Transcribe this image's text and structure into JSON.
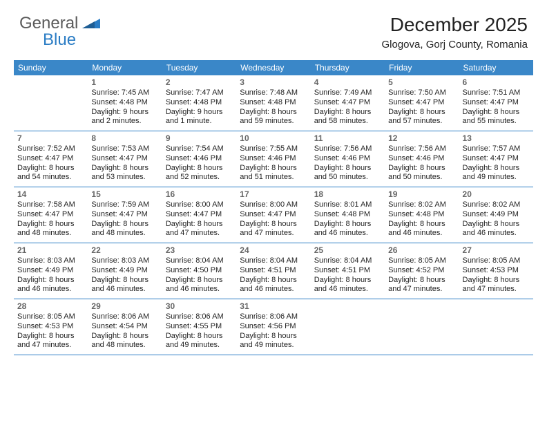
{
  "colors": {
    "header_bg": "#3a87c8",
    "header_text": "#ffffff",
    "divider": "#2a7cc4",
    "body_text": "#222222",
    "daynum_text": "#666666",
    "logo_gray": "#5a5a5a",
    "logo_blue": "#2a7cc4",
    "background": "#ffffff"
  },
  "logo": {
    "part1": "General",
    "part2": "Blue"
  },
  "title": "December 2025",
  "location": "Glogova, Gorj County, Romania",
  "weekdays": [
    "Sunday",
    "Monday",
    "Tuesday",
    "Wednesday",
    "Thursday",
    "Friday",
    "Saturday"
  ],
  "weeks": [
    [
      {
        "num": "",
        "sunrise": "",
        "sunset": "",
        "daylight": ""
      },
      {
        "num": "1",
        "sunrise": "Sunrise: 7:45 AM",
        "sunset": "Sunset: 4:48 PM",
        "daylight": "Daylight: 9 hours and 2 minutes."
      },
      {
        "num": "2",
        "sunrise": "Sunrise: 7:47 AM",
        "sunset": "Sunset: 4:48 PM",
        "daylight": "Daylight: 9 hours and 1 minute."
      },
      {
        "num": "3",
        "sunrise": "Sunrise: 7:48 AM",
        "sunset": "Sunset: 4:48 PM",
        "daylight": "Daylight: 8 hours and 59 minutes."
      },
      {
        "num": "4",
        "sunrise": "Sunrise: 7:49 AM",
        "sunset": "Sunset: 4:47 PM",
        "daylight": "Daylight: 8 hours and 58 minutes."
      },
      {
        "num": "5",
        "sunrise": "Sunrise: 7:50 AM",
        "sunset": "Sunset: 4:47 PM",
        "daylight": "Daylight: 8 hours and 57 minutes."
      },
      {
        "num": "6",
        "sunrise": "Sunrise: 7:51 AM",
        "sunset": "Sunset: 4:47 PM",
        "daylight": "Daylight: 8 hours and 55 minutes."
      }
    ],
    [
      {
        "num": "7",
        "sunrise": "Sunrise: 7:52 AM",
        "sunset": "Sunset: 4:47 PM",
        "daylight": "Daylight: 8 hours and 54 minutes."
      },
      {
        "num": "8",
        "sunrise": "Sunrise: 7:53 AM",
        "sunset": "Sunset: 4:47 PM",
        "daylight": "Daylight: 8 hours and 53 minutes."
      },
      {
        "num": "9",
        "sunrise": "Sunrise: 7:54 AM",
        "sunset": "Sunset: 4:46 PM",
        "daylight": "Daylight: 8 hours and 52 minutes."
      },
      {
        "num": "10",
        "sunrise": "Sunrise: 7:55 AM",
        "sunset": "Sunset: 4:46 PM",
        "daylight": "Daylight: 8 hours and 51 minutes."
      },
      {
        "num": "11",
        "sunrise": "Sunrise: 7:56 AM",
        "sunset": "Sunset: 4:46 PM",
        "daylight": "Daylight: 8 hours and 50 minutes."
      },
      {
        "num": "12",
        "sunrise": "Sunrise: 7:56 AM",
        "sunset": "Sunset: 4:46 PM",
        "daylight": "Daylight: 8 hours and 50 minutes."
      },
      {
        "num": "13",
        "sunrise": "Sunrise: 7:57 AM",
        "sunset": "Sunset: 4:47 PM",
        "daylight": "Daylight: 8 hours and 49 minutes."
      }
    ],
    [
      {
        "num": "14",
        "sunrise": "Sunrise: 7:58 AM",
        "sunset": "Sunset: 4:47 PM",
        "daylight": "Daylight: 8 hours and 48 minutes."
      },
      {
        "num": "15",
        "sunrise": "Sunrise: 7:59 AM",
        "sunset": "Sunset: 4:47 PM",
        "daylight": "Daylight: 8 hours and 48 minutes."
      },
      {
        "num": "16",
        "sunrise": "Sunrise: 8:00 AM",
        "sunset": "Sunset: 4:47 PM",
        "daylight": "Daylight: 8 hours and 47 minutes."
      },
      {
        "num": "17",
        "sunrise": "Sunrise: 8:00 AM",
        "sunset": "Sunset: 4:47 PM",
        "daylight": "Daylight: 8 hours and 47 minutes."
      },
      {
        "num": "18",
        "sunrise": "Sunrise: 8:01 AM",
        "sunset": "Sunset: 4:48 PM",
        "daylight": "Daylight: 8 hours and 46 minutes."
      },
      {
        "num": "19",
        "sunrise": "Sunrise: 8:02 AM",
        "sunset": "Sunset: 4:48 PM",
        "daylight": "Daylight: 8 hours and 46 minutes."
      },
      {
        "num": "20",
        "sunrise": "Sunrise: 8:02 AM",
        "sunset": "Sunset: 4:49 PM",
        "daylight": "Daylight: 8 hours and 46 minutes."
      }
    ],
    [
      {
        "num": "21",
        "sunrise": "Sunrise: 8:03 AM",
        "sunset": "Sunset: 4:49 PM",
        "daylight": "Daylight: 8 hours and 46 minutes."
      },
      {
        "num": "22",
        "sunrise": "Sunrise: 8:03 AM",
        "sunset": "Sunset: 4:49 PM",
        "daylight": "Daylight: 8 hours and 46 minutes."
      },
      {
        "num": "23",
        "sunrise": "Sunrise: 8:04 AM",
        "sunset": "Sunset: 4:50 PM",
        "daylight": "Daylight: 8 hours and 46 minutes."
      },
      {
        "num": "24",
        "sunrise": "Sunrise: 8:04 AM",
        "sunset": "Sunset: 4:51 PM",
        "daylight": "Daylight: 8 hours and 46 minutes."
      },
      {
        "num": "25",
        "sunrise": "Sunrise: 8:04 AM",
        "sunset": "Sunset: 4:51 PM",
        "daylight": "Daylight: 8 hours and 46 minutes."
      },
      {
        "num": "26",
        "sunrise": "Sunrise: 8:05 AM",
        "sunset": "Sunset: 4:52 PM",
        "daylight": "Daylight: 8 hours and 47 minutes."
      },
      {
        "num": "27",
        "sunrise": "Sunrise: 8:05 AM",
        "sunset": "Sunset: 4:53 PM",
        "daylight": "Daylight: 8 hours and 47 minutes."
      }
    ],
    [
      {
        "num": "28",
        "sunrise": "Sunrise: 8:05 AM",
        "sunset": "Sunset: 4:53 PM",
        "daylight": "Daylight: 8 hours and 47 minutes."
      },
      {
        "num": "29",
        "sunrise": "Sunrise: 8:06 AM",
        "sunset": "Sunset: 4:54 PM",
        "daylight": "Daylight: 8 hours and 48 minutes."
      },
      {
        "num": "30",
        "sunrise": "Sunrise: 8:06 AM",
        "sunset": "Sunset: 4:55 PM",
        "daylight": "Daylight: 8 hours and 49 minutes."
      },
      {
        "num": "31",
        "sunrise": "Sunrise: 8:06 AM",
        "sunset": "Sunset: 4:56 PM",
        "daylight": "Daylight: 8 hours and 49 minutes."
      },
      {
        "num": "",
        "sunrise": "",
        "sunset": "",
        "daylight": ""
      },
      {
        "num": "",
        "sunrise": "",
        "sunset": "",
        "daylight": ""
      },
      {
        "num": "",
        "sunrise": "",
        "sunset": "",
        "daylight": ""
      }
    ]
  ]
}
